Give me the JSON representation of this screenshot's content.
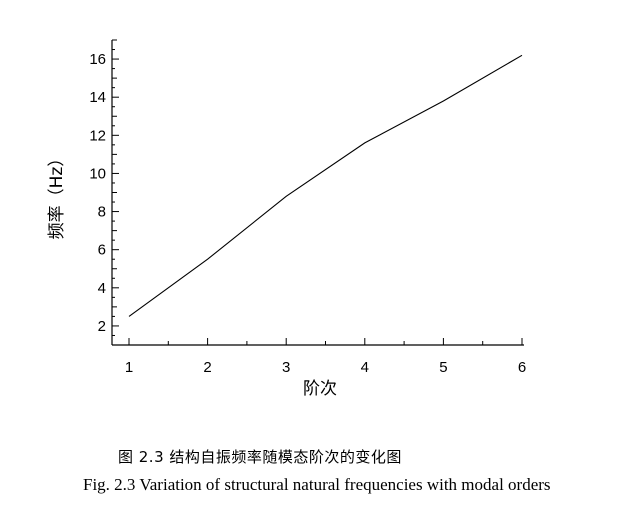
{
  "chart_data": {
    "type": "line",
    "xlabel": "阶次",
    "ylabel": "频率（Hz）",
    "xlim": [
      1,
      6
    ],
    "ylim": [
      1,
      17
    ],
    "x_ticks": [
      1,
      2,
      3,
      4,
      5,
      6
    ],
    "y_ticks": [
      2,
      4,
      6,
      8,
      10,
      12,
      14,
      16
    ],
    "grid": false,
    "series": [
      {
        "x": [
          1,
          2,
          3,
          4,
          5,
          6
        ],
        "y": [
          2.5,
          5.5,
          8.8,
          11.6,
          13.8,
          16.2
        ]
      }
    ]
  },
  "captions": {
    "chinese": "图 2.3 结构自振频率随模态阶次的变化图",
    "english": "Fig. 2.3 Variation of structural natural frequencies with modal orders"
  },
  "colors": {
    "line": "#000000",
    "axis": "#000000"
  }
}
